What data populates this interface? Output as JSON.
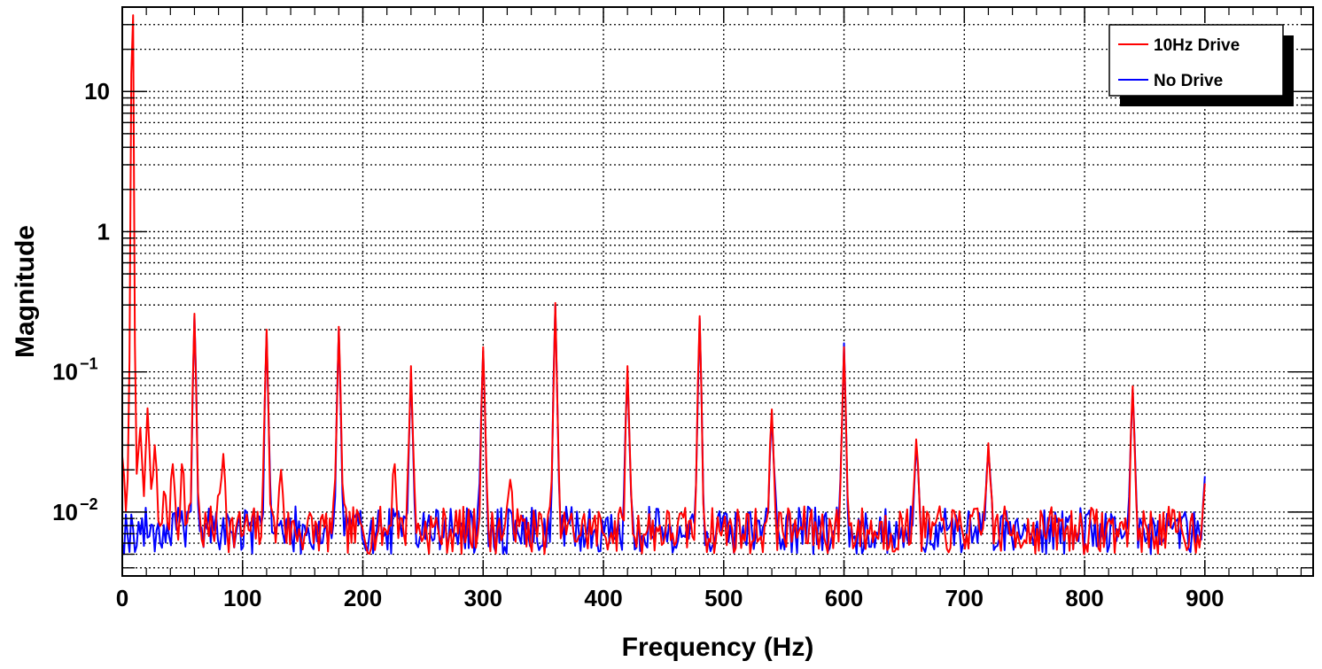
{
  "chart_data": {
    "type": "line",
    "title": "",
    "xlabel": "Frequency (Hz)",
    "ylabel": "Magnitude",
    "xlim": [
      0,
      990
    ],
    "ylim": [
      0.0035,
      40
    ],
    "y_scale": "log",
    "grid": true,
    "legend_position": "top-right",
    "x_ticks": [
      0,
      100,
      200,
      300,
      400,
      500,
      600,
      700,
      800,
      900
    ],
    "x_tick_labels": [
      "0",
      "100",
      "200",
      "300",
      "400",
      "500",
      "600",
      "700",
      "800",
      "900"
    ],
    "y_ticks": [
      0.01,
      0.1,
      1,
      10
    ],
    "y_tick_labels": [
      {
        "base": "10",
        "exp": "−2"
      },
      {
        "base": "10",
        "exp": "−1"
      },
      {
        "base": "1",
        "exp": ""
      },
      {
        "base": "10",
        "exp": ""
      }
    ],
    "noise_floor_range": [
      0.005,
      0.011
    ],
    "series": [
      {
        "name": "10Hz Drive",
        "color": "#ff0000",
        "peaks": [
          {
            "x": 0,
            "y": 0.025
          },
          {
            "x": 8.3,
            "y": 35
          },
          {
            "x": 12,
            "y": 0.016
          },
          {
            "x": 15,
            "y": 0.04
          },
          {
            "x": 21,
            "y": 0.055
          },
          {
            "x": 27,
            "y": 0.03
          },
          {
            "x": 35,
            "y": 0.014
          },
          {
            "x": 42,
            "y": 0.022
          },
          {
            "x": 50,
            "y": 0.022
          },
          {
            "x": 60,
            "y": 0.26
          },
          {
            "x": 80,
            "y": 0.013
          },
          {
            "x": 84,
            "y": 0.026
          },
          {
            "x": 120,
            "y": 0.2
          },
          {
            "x": 132,
            "y": 0.02
          },
          {
            "x": 180,
            "y": 0.21
          },
          {
            "x": 226,
            "y": 0.022
          },
          {
            "x": 240,
            "y": 0.11
          },
          {
            "x": 300,
            "y": 0.15
          },
          {
            "x": 323,
            "y": 0.017
          },
          {
            "x": 360,
            "y": 0.31
          },
          {
            "x": 420,
            "y": 0.11
          },
          {
            "x": 480,
            "y": 0.25
          },
          {
            "x": 540,
            "y": 0.054
          },
          {
            "x": 600,
            "y": 0.15
          },
          {
            "x": 660,
            "y": 0.033
          },
          {
            "x": 720,
            "y": 0.031
          },
          {
            "x": 840,
            "y": 0.079
          },
          {
            "x": 900,
            "y": 0.016
          }
        ]
      },
      {
        "name": "No Drive",
        "color": "#0000ff",
        "peaks": [
          {
            "x": 60,
            "y": 0.25
          },
          {
            "x": 120,
            "y": 0.19
          },
          {
            "x": 180,
            "y": 0.2
          },
          {
            "x": 240,
            "y": 0.1
          },
          {
            "x": 300,
            "y": 0.14
          },
          {
            "x": 360,
            "y": 0.3
          },
          {
            "x": 420,
            "y": 0.1
          },
          {
            "x": 480,
            "y": 0.24
          },
          {
            "x": 540,
            "y": 0.05
          },
          {
            "x": 600,
            "y": 0.16
          },
          {
            "x": 660,
            "y": 0.03
          },
          {
            "x": 720,
            "y": 0.028
          },
          {
            "x": 840,
            "y": 0.075
          },
          {
            "x": 900,
            "y": 0.018
          }
        ]
      }
    ]
  }
}
